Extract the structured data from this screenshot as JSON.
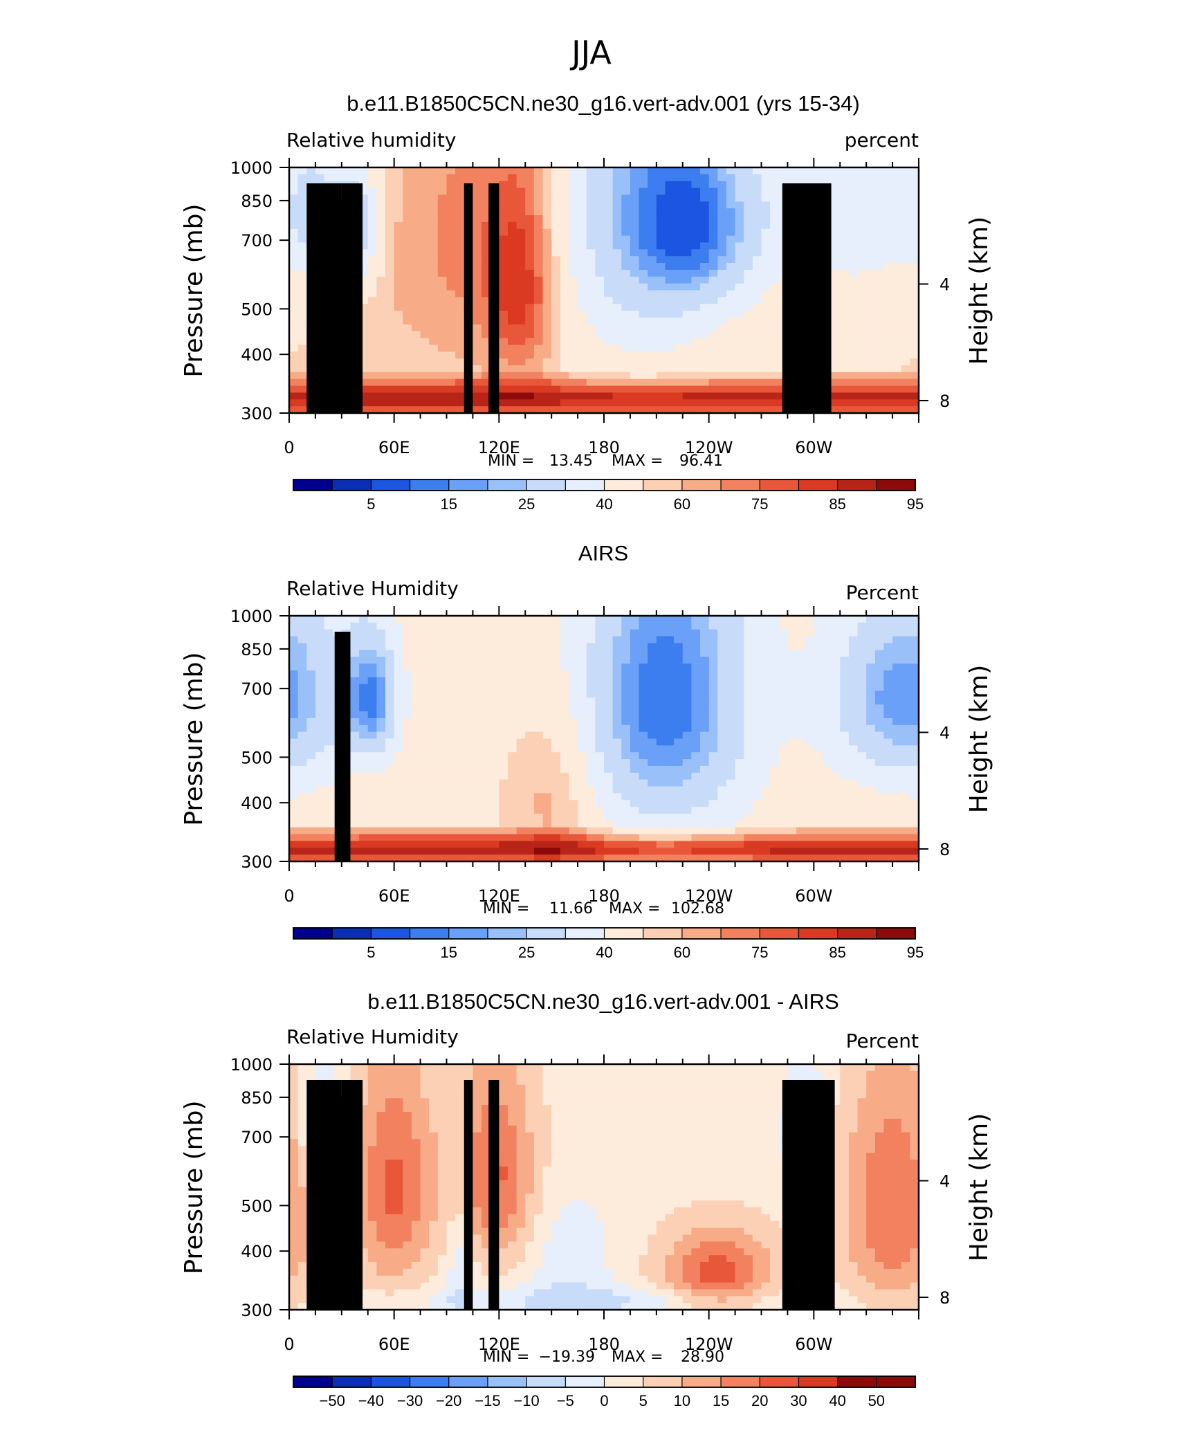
{
  "figure_title": "JJA",
  "colors": {
    "rh": [
      "#00008c",
      "#0a2fb4",
      "#1b55e0",
      "#3c7df0",
      "#6aa0f7",
      "#9ac0fa",
      "#c8dcf9",
      "#e6effb",
      "#fdebdc",
      "#fcd0b4",
      "#f7ab86",
      "#f2815f",
      "#e9573a",
      "#d93a21",
      "#b82518",
      "#8c0a0a"
    ],
    "land": "#000000"
  },
  "chart_data": [
    {
      "type": "heatmap",
      "title": "b.e11.B1850C5CN.ne30_g16.vert-adv.001 (yrs 15-34)",
      "variable_label": "Relative humidity",
      "units_label": "percent",
      "ylabel": "Pressure (mb)",
      "ylabel_right": "Height (km)",
      "x_tick_labels": [
        "0",
        "60E",
        "120E",
        "180",
        "120W",
        "60W"
      ],
      "y_tick_labels": [
        "300",
        "400",
        "500",
        "700",
        "850",
        "1000"
      ],
      "y_right_tick_labels": [
        "8",
        "4"
      ],
      "min_label": "MIN =",
      "min_value": "13.45",
      "max_label": "MAX =",
      "max_value": "96.41",
      "colorbar_labels": [
        "5",
        "15",
        "25",
        "40",
        "60",
        "75",
        "85",
        "95"
      ],
      "levels": [
        5,
        10,
        15,
        20,
        25,
        30,
        40,
        50,
        60,
        65,
        70,
        75,
        80,
        85,
        90,
        95
      ],
      "xlim": [
        0,
        360
      ],
      "ylim": [
        1000,
        300
      ],
      "grid": false,
      "field": {
        "base": 60,
        "features": [
          {
            "lon": 14,
            "p": 380,
            "amp": -22,
            "slon": 10,
            "sp": 80
          },
          {
            "lon": 38,
            "p": 400,
            "amp": -28,
            "slon": 10,
            "sp": 90
          },
          {
            "lon": 105,
            "p": 420,
            "amp": 12,
            "slon": 40,
            "sp": 250
          },
          {
            "lon": 133,
            "p": 530,
            "amp": 20,
            "slon": 14,
            "sp": 200
          },
          {
            "lon": 200,
            "p": 360,
            "amp": -30,
            "slon": 38,
            "sp": 260
          },
          {
            "lon": 235,
            "p": 400,
            "amp": -28,
            "slon": 26,
            "sp": 120
          },
          {
            "lon": 325,
            "p": 350,
            "amp": -18,
            "slon": 35,
            "sp": 140
          }
        ],
        "boundary_layer": {
          "center_p": 930,
          "width_p": 120,
          "amp": 30
        },
        "land_mask": [
          [
            10,
            30,
            925
          ],
          [
            28,
            40,
            850
          ],
          [
            30,
            42,
            925
          ],
          [
            100,
            105,
            925
          ],
          [
            114,
            120,
            925
          ],
          [
            282,
            310,
            925
          ]
        ]
      }
    },
    {
      "type": "heatmap",
      "title": "AIRS",
      "variable_label": "Relative Humidity",
      "units_label": "Percent",
      "ylabel": "Pressure (mb)",
      "ylabel_right": "Height (km)",
      "x_tick_labels": [
        "0",
        "60E",
        "120E",
        "180",
        "120W",
        "60W"
      ],
      "y_tick_labels": [
        "300",
        "400",
        "500",
        "700",
        "850",
        "1000"
      ],
      "y_right_tick_labels": [
        "8",
        "4"
      ],
      "min_label": "MIN =",
      "min_value": "11.66",
      "max_label": "MAX =",
      "max_value": "102.68",
      "colorbar_labels": [
        "5",
        "15",
        "25",
        "40",
        "60",
        "75",
        "85",
        "95"
      ],
      "levels": [
        5,
        10,
        15,
        20,
        25,
        30,
        40,
        50,
        60,
        65,
        70,
        75,
        80,
        85,
        90,
        95
      ],
      "xlim": [
        0,
        360
      ],
      "ylim": [
        1000,
        300
      ],
      "grid": false,
      "field": {
        "base": 58,
        "features": [
          {
            "lon": 10,
            "p": 420,
            "amp": -16,
            "slon": 18,
            "sp": 200
          },
          {
            "lon": 47,
            "p": 450,
            "amp": -38,
            "slon": 12,
            "sp": 110
          },
          {
            "lon": 152,
            "p": 700,
            "amp": 12,
            "slon": 18,
            "sp": 200
          },
          {
            "lon": 215,
            "p": 450,
            "amp": -42,
            "slon": 36,
            "sp": 270
          },
          {
            "lon": 340,
            "p": 450,
            "amp": -30,
            "slon": 25,
            "sp": 150
          }
        ],
        "boundary_layer": {
          "center_p": 940,
          "width_p": 110,
          "amp": 32
        },
        "land_mask": [
          [
            26,
            35,
            925
          ]
        ]
      }
    },
    {
      "type": "heatmap",
      "title": "b.e11.B1850C5CN.ne30_g16.vert-adv.001 - AIRS",
      "variable_label": "Relative Humidity",
      "units_label": "Percent",
      "ylabel": "Pressure (mb)",
      "ylabel_right": "Height (km)",
      "x_tick_labels": [
        "0",
        "60E",
        "120E",
        "180",
        "120W",
        "60W"
      ],
      "y_tick_labels": [
        "300",
        "400",
        "500",
        "700",
        "850",
        "1000"
      ],
      "y_right_tick_labels": [
        "8",
        "4"
      ],
      "min_label": "MIN =",
      "min_value": "−19.39",
      "max_label": "MAX =",
      "max_value": "28.90",
      "colorbar_labels": [
        "−50",
        "−40",
        "−30",
        "−20",
        "−15",
        "−10",
        "−5",
        "0",
        "5",
        "10",
        "15",
        "20",
        "30",
        "40",
        "50"
      ],
      "levels": [
        -50,
        -40,
        -30,
        -20,
        -15,
        -10,
        -5,
        0,
        5,
        10,
        15,
        20,
        30,
        40,
        50
      ],
      "xlim": [
        0,
        360
      ],
      "ylim": [
        1000,
        300
      ],
      "grid": false,
      "field": {
        "base": 3,
        "features": [
          {
            "lon": 18,
            "p": 420,
            "amp": -14,
            "slon": 8,
            "sp": 90
          },
          {
            "lon": 60,
            "p": 550,
            "amp": 18,
            "slon": 16,
            "sp": 220
          },
          {
            "lon": 118,
            "p": 520,
            "amp": 18,
            "slon": 16,
            "sp": 180
          },
          {
            "lon": 98,
            "p": 800,
            "amp": -8,
            "slon": 6,
            "sp": 200
          },
          {
            "lon": 160,
            "p": 800,
            "amp": -7,
            "slon": 18,
            "sp": 180
          },
          {
            "lon": 245,
            "p": 840,
            "amp": 20,
            "slon": 22,
            "sp": 120
          },
          {
            "lon": 295,
            "p": 420,
            "amp": -12,
            "slon": 8,
            "sp": 90
          },
          {
            "lon": 345,
            "p": 600,
            "amp": 17,
            "slon": 20,
            "sp": 250
          },
          {
            "lon": 180,
            "p": 960,
            "amp": -8,
            "slon": 90,
            "sp": 50
          }
        ],
        "land_mask": [
          [
            10,
            30,
            925
          ],
          [
            28,
            40,
            850
          ],
          [
            30,
            42,
            925
          ],
          [
            100,
            105,
            925
          ],
          [
            114,
            120,
            925
          ],
          [
            282,
            312,
            925
          ]
        ]
      }
    }
  ]
}
